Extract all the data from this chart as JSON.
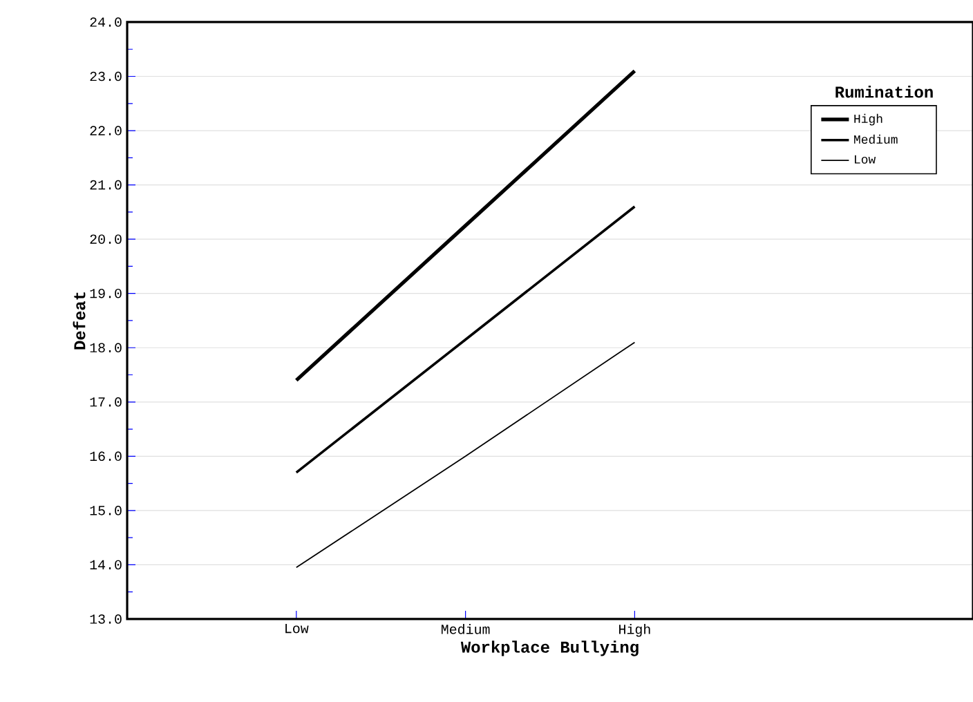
{
  "chart_data": {
    "type": "line",
    "xlabel": "Workplace Bullying",
    "ylabel": "Defeat",
    "legend_title": "Rumination",
    "categories": [
      "Low",
      "Medium",
      "High"
    ],
    "series": [
      {
        "name": "High",
        "color": "#000000",
        "values": [
          17.4,
          20.25,
          23.1
        ]
      },
      {
        "name": "Medium",
        "color": "#000000",
        "values": [
          15.7,
          18.15,
          20.6
        ]
      },
      {
        "name": "Low",
        "color": "#000000",
        "values": [
          13.95,
          16.0,
          18.1
        ]
      }
    ],
    "ylim": [
      13,
      24
    ],
    "yticks": [
      {
        "value": 13,
        "label": "13.0"
      },
      {
        "value": 14,
        "label": "14.0"
      },
      {
        "value": 15,
        "label": "15.0"
      },
      {
        "value": 16,
        "label": "16.0"
      },
      {
        "value": 17,
        "label": "17.0"
      },
      {
        "value": 18,
        "label": "18.0"
      },
      {
        "value": 19,
        "label": "19.0"
      },
      {
        "value": 20,
        "label": "20.0"
      },
      {
        "value": 21,
        "label": "21.0"
      },
      {
        "value": 22,
        "label": "22.0"
      },
      {
        "value": 23,
        "label": "23.0"
      },
      {
        "value": 24,
        "label": "24.0"
      }
    ],
    "grid": "y",
    "legend": "top right",
    "marker": "none",
    "line_style": "solid"
  }
}
